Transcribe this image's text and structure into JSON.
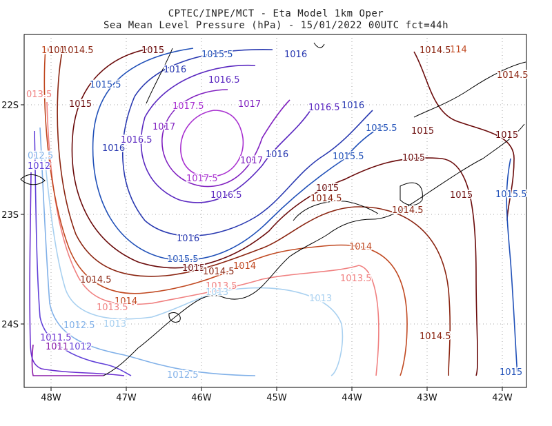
{
  "header": {
    "line1": "CPTEC/INPE/MCT -  Eta Model 1km Oper",
    "line2": "Sea Mean Level Pressure (hPa) - 15/01/2022 00UTC fct=44h"
  },
  "axes": {
    "x_ticks": [
      "48W",
      "47W",
      "46W",
      "45W",
      "44W",
      "43W",
      "42W"
    ],
    "y_ticks": [
      "22S",
      "23S",
      "24S"
    ]
  },
  "colors": {
    "c1011": "#8a1aa8",
    "c1011_5": "#6a2ed0",
    "c1012": "#6040d8",
    "c1012_5": "#80b0e8",
    "c1013": "#a8d0f0",
    "c1013_5": "#f08080",
    "c1014": "#c04820",
    "c1014_5": "#8a2410",
    "c1015": "#6a0a0a",
    "c1015_5": "#2050b8",
    "c1016": "#2838b0",
    "c1016_5": "#5a28c0",
    "c1017": "#8020c0",
    "c1017_5": "#a830d0",
    "coast": "#000000"
  },
  "contour_labels": [
    {
      "id": "l1",
      "text": "1014.5",
      "c": "c1014_5"
    },
    {
      "id": "l2",
      "text": "1015",
      "c": "c1015"
    },
    {
      "id": "l3",
      "text": "1015.5",
      "c": "c1015_5"
    },
    {
      "id": "l4",
      "text": "1016",
      "c": "c1016"
    },
    {
      "id": "l5",
      "text": "1014.5",
      "c": "c1014_5"
    },
    {
      "id": "l6",
      "text": "1014",
      "c": "c1014"
    },
    {
      "id": "l7",
      "text": "1016",
      "c": "c1016"
    },
    {
      "id": "l8",
      "text": "1016.5",
      "c": "c1016_5"
    },
    {
      "id": "l9",
      "text": "1015.5",
      "c": "c1015_5"
    },
    {
      "id": "l10",
      "text": "1014.5",
      "c": "c1014_5"
    },
    {
      "id": "l11",
      "text": "013.5",
      "c": "c1013_5"
    },
    {
      "id": "l12",
      "text": "1015",
      "c": "c1015"
    },
    {
      "id": "l13",
      "text": "1017.5",
      "c": "c1017_5"
    },
    {
      "id": "l14",
      "text": "1017",
      "c": "c1017"
    },
    {
      "id": "l15",
      "text": "1016.5",
      "c": "c1016_5"
    },
    {
      "id": "l16",
      "text": "1016",
      "c": "c1016"
    },
    {
      "id": "l17",
      "text": "1015.5",
      "c": "c1015_5"
    },
    {
      "id": "l18",
      "text": "1015",
      "c": "c1015"
    },
    {
      "id": "l19",
      "text": "1015",
      "c": "c1015"
    },
    {
      "id": "l20",
      "text": "1017",
      "c": "c1017"
    },
    {
      "id": "l21",
      "text": "1016.5",
      "c": "c1016_5"
    },
    {
      "id": "l22",
      "text": "1016",
      "c": "c1016"
    },
    {
      "id": "l23",
      "text": "012.5",
      "c": "c1012_5"
    },
    {
      "id": "l24",
      "text": "1012",
      "c": "c1012"
    },
    {
      "id": "l25",
      "text": "1017",
      "c": "c1017"
    },
    {
      "id": "l26",
      "text": "1016",
      "c": "c1016"
    },
    {
      "id": "l27",
      "text": "1015.5",
      "c": "c1015_5"
    },
    {
      "id": "l28",
      "text": "1015",
      "c": "c1015"
    },
    {
      "id": "l29",
      "text": "1017.5",
      "c": "c1017_5"
    },
    {
      "id": "l30",
      "text": "1016.5",
      "c": "c1016_5"
    },
    {
      "id": "l31",
      "text": "1015",
      "c": "c1015"
    },
    {
      "id": "l32",
      "text": "1014.5",
      "c": "c1014_5"
    },
    {
      "id": "l33",
      "text": "1015",
      "c": "c1015"
    },
    {
      "id": "l34",
      "text": "1015.5",
      "c": "c1015_5"
    },
    {
      "id": "l35",
      "text": "1014.5",
      "c": "c1014_5"
    },
    {
      "id": "l36",
      "text": "1016",
      "c": "c1016"
    },
    {
      "id": "l37",
      "text": "1014",
      "c": "c1014"
    },
    {
      "id": "l38",
      "text": "1015.5",
      "c": "c1015_5"
    },
    {
      "id": "l39",
      "text": "1015",
      "c": "c1015"
    },
    {
      "id": "l40",
      "text": "1014.5",
      "c": "c1014_5"
    },
    {
      "id": "l41",
      "text": "1014",
      "c": "c1014"
    },
    {
      "id": "l42",
      "text": "1014.5",
      "c": "c1014_5"
    },
    {
      "id": "l43",
      "text": "1013.5",
      "c": "c1013_5"
    },
    {
      "id": "l44",
      "text": "1013.5",
      "c": "c1013_5"
    },
    {
      "id": "l45",
      "text": "1014",
      "c": "c1014"
    },
    {
      "id": "l46",
      "text": "1013.5",
      "c": "c1013_5"
    },
    {
      "id": "l47",
      "text": "1013",
      "c": "c1013"
    },
    {
      "id": "l48",
      "text": "1013",
      "c": "c1013"
    },
    {
      "id": "l49",
      "text": "1012.5",
      "c": "c1012_5"
    },
    {
      "id": "l50",
      "text": "1013",
      "c": "c1013"
    },
    {
      "id": "l51",
      "text": "1011.5",
      "c": "c1011_5"
    },
    {
      "id": "l52",
      "text": "1014.5",
      "c": "c1014_5"
    },
    {
      "id": "l53",
      "text": "1011",
      "c": "c1011"
    },
    {
      "id": "l54",
      "text": "1012",
      "c": "c1012"
    },
    {
      "id": "l55",
      "text": "1012.5",
      "c": "c1012_5"
    },
    {
      "id": "l56",
      "text": "1015",
      "c": "c1015_5"
    },
    {
      "id": "l57",
      "text": "101",
      "c": "c1014_5"
    },
    {
      "id": "l58",
      "text": "114",
      "c": "c1014"
    }
  ]
}
